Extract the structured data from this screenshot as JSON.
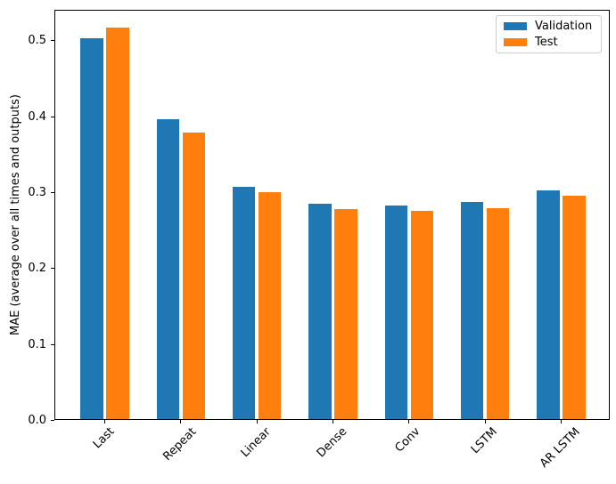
{
  "figure": {
    "background": "#ffffff",
    "text_color": "#000000",
    "spine_color": "#000000"
  },
  "chart_data": {
    "type": "bar",
    "title": "",
    "xlabel": "",
    "ylabel": "MAE (average over all times and outputs)",
    "categories": [
      "Last",
      "Repeat",
      "Linear",
      "Dense",
      "Conv",
      "LSTM",
      "AR LSTM"
    ],
    "series": [
      {
        "name": "Validation",
        "color": "#1f77b4",
        "values": [
          0.501,
          0.395,
          0.306,
          0.283,
          0.281,
          0.286,
          0.301
        ]
      },
      {
        "name": "Test",
        "color": "#ff7f0e",
        "values": [
          0.516,
          0.377,
          0.299,
          0.276,
          0.274,
          0.278,
          0.294
        ]
      }
    ],
    "ylim": [
      0,
      0.54
    ],
    "xlim": [
      -0.65,
      6.65
    ],
    "yticks": [
      0.0,
      0.1,
      0.2,
      0.3,
      0.4,
      0.5
    ],
    "ytick_labels": [
      "0.0",
      "0.1",
      "0.2",
      "0.3",
      "0.4",
      "0.5"
    ],
    "xtick_rotation": 45,
    "grid": false,
    "bar_group": {
      "series_offset": 0.17,
      "bar_width": 0.3
    },
    "legend": {
      "position": "upper right",
      "entries": [
        "Validation",
        "Test"
      ]
    }
  }
}
